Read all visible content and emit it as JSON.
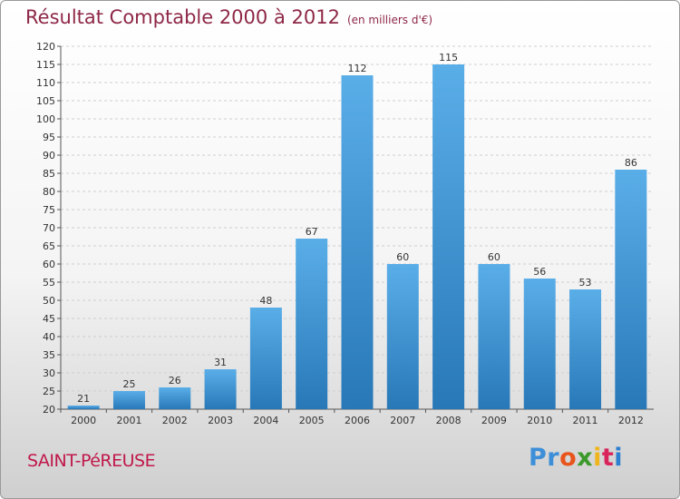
{
  "title": "Résultat Comptable 2000 à 2012",
  "subtitle": "(en milliers d'€)",
  "place": "SAINT-PéREUSE",
  "logo": {
    "p1": "Pr",
    "p2": "o",
    "p3": "x",
    "p4": "i",
    "p5": "t",
    "p6": "i"
  },
  "colors": {
    "bar_light": "#5aaee8",
    "bar_dark": "#2878b8",
    "title": "#8e2846",
    "place": "#c0184a"
  },
  "chart_data": {
    "type": "bar",
    "categories": [
      "2000",
      "2001",
      "2002",
      "2003",
      "2004",
      "2005",
      "2006",
      "2007",
      "2008",
      "2009",
      "2010",
      "2011",
      "2012"
    ],
    "values": [
      21,
      25,
      26,
      31,
      48,
      67,
      112,
      60,
      115,
      60,
      56,
      53,
      86
    ],
    "ylim": [
      20,
      120
    ],
    "yticks": [
      20,
      25,
      30,
      35,
      40,
      45,
      50,
      55,
      60,
      65,
      70,
      75,
      80,
      85,
      90,
      95,
      100,
      105,
      110,
      115,
      120
    ],
    "grid": true,
    "xlabel": "",
    "ylabel": ""
  }
}
